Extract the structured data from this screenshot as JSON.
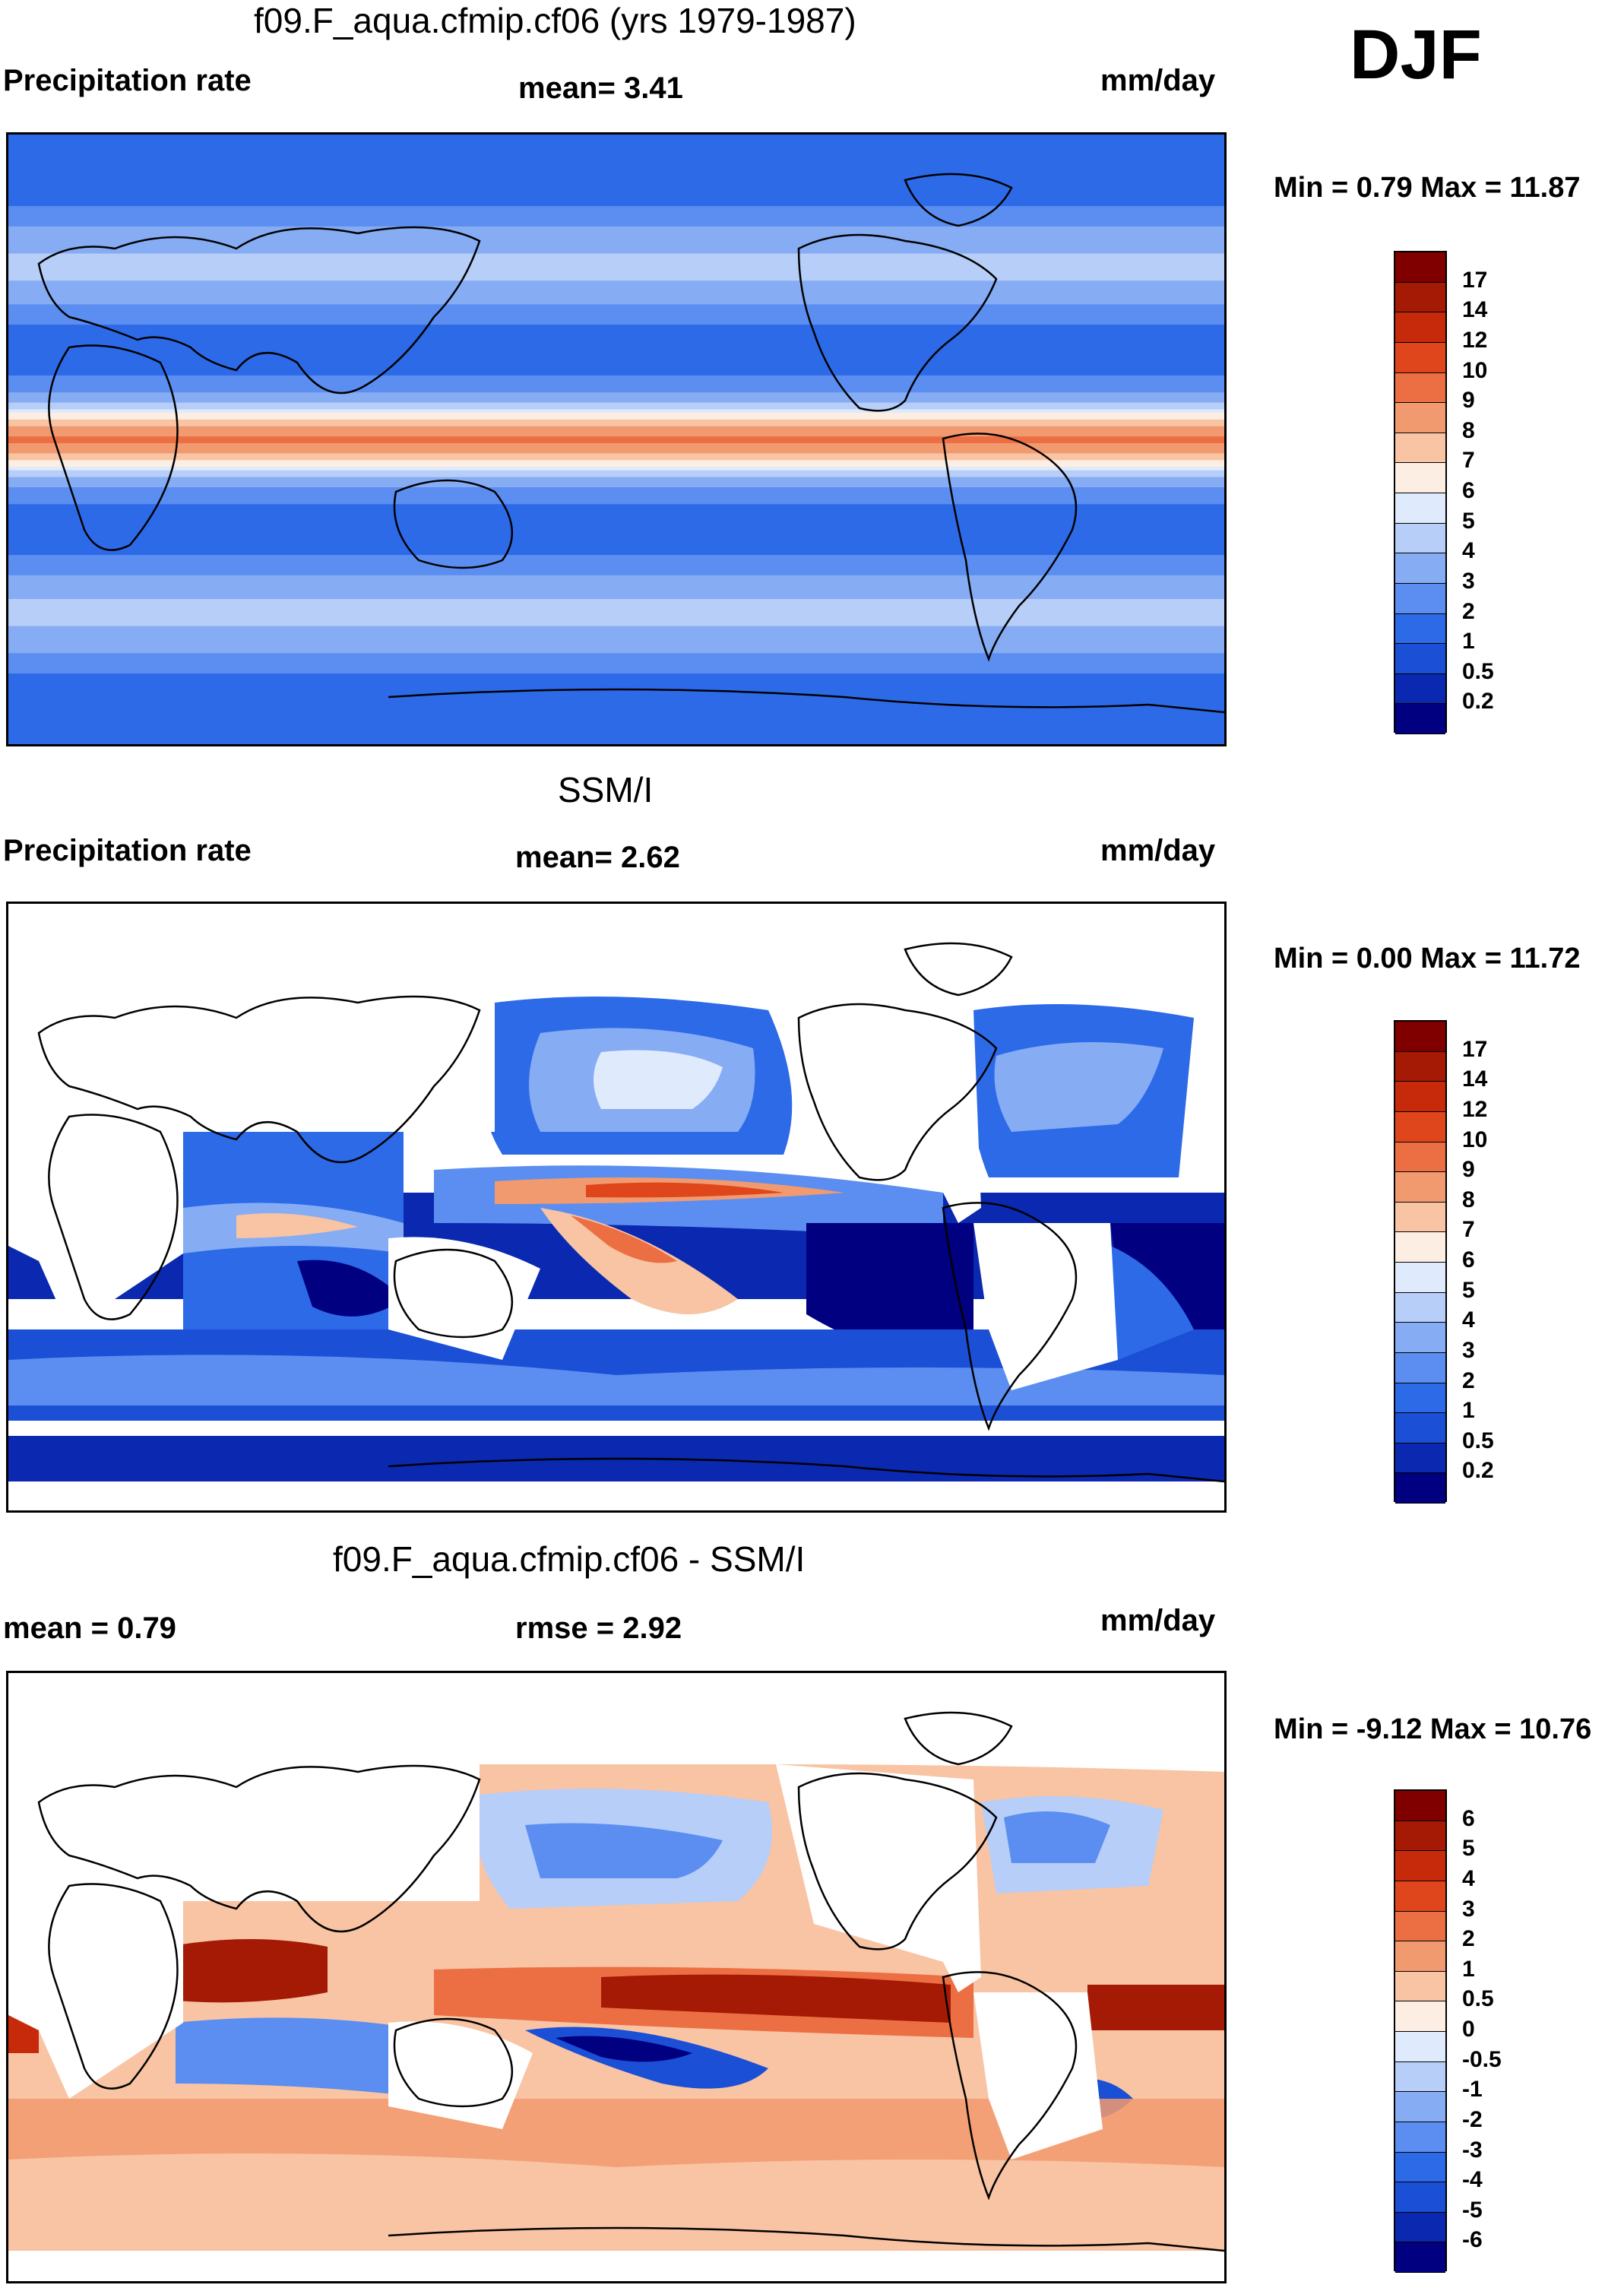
{
  "season": "DJF",
  "colors": {
    "precip": [
      "#000080",
      "#0a28b0",
      "#1b4fd6",
      "#2d6ae8",
      "#5b8ef0",
      "#86acf4",
      "#b6cef8",
      "#dfeafc",
      "#fdeee3",
      "#f8c4a4",
      "#f29a6f",
      "#ec6f43",
      "#e0461c",
      "#c62a0a",
      "#a41a05",
      "#800000"
    ],
    "diff": [
      "#000080",
      "#0a28b0",
      "#1b4fd6",
      "#2d6ae8",
      "#5b8ef0",
      "#86acf4",
      "#b6cef8",
      "#dfeafc",
      "#fdeee3",
      "#f8c4a4",
      "#f29a6f",
      "#ec6f43",
      "#e0461c",
      "#c62a0a",
      "#a41a05",
      "#800000"
    ],
    "land_outline": "#000000",
    "missing": "#ffffff"
  },
  "panels": [
    {
      "id": "model",
      "title": "f09.F_aqua.cfmip.cf06 (yrs 1979-1987)",
      "left_label": "Precipitation rate",
      "center_label": "mean=   3.41",
      "right_label": "mm/day",
      "min_max": "Min =   0.79 Max =  11.87"
    },
    {
      "id": "obs",
      "title": "SSM/I",
      "left_label": "Precipitation rate",
      "center_label": "mean=   2.62",
      "right_label": "mm/day",
      "min_max": "Min =   0.00 Max =  11.72"
    },
    {
      "id": "diff",
      "title": "f09.F_aqua.cfmip.cf06 - SSM/I",
      "left_label": "mean =   0.79",
      "center_label": "rmse =   2.92",
      "right_label": "mm/day",
      "min_max": "Min =  -9.12 Max =  10.76"
    }
  ],
  "chart_data": [
    {
      "type": "heatmap",
      "title": "f09.F_aqua.cfmip.cf06 (yrs 1979-1987)",
      "variable": "Precipitation rate",
      "units": "mm/day",
      "mean": 3.41,
      "min": 0.79,
      "max": 11.87,
      "levels": [
        "0.2",
        "0.5",
        "1",
        "2",
        "3",
        "4",
        "5",
        "6",
        "7",
        "8",
        "9",
        "10",
        "12",
        "14",
        "17"
      ],
      "zonal_profile": {
        "lat": [
          -90,
          -80,
          -70,
          -60,
          -50,
          -40,
          -30,
          -20,
          -15,
          -10,
          -5,
          0,
          5,
          10,
          15,
          20,
          30,
          40,
          50,
          60,
          70,
          80,
          90
        ],
        "value": [
          1.5,
          1.6,
          1.8,
          3.5,
          4.5,
          3.0,
          1.3,
          1.8,
          2.5,
          4.5,
          7.5,
          9.5,
          7.5,
          4.5,
          2.5,
          1.8,
          1.3,
          3.0,
          4.5,
          3.5,
          1.8,
          1.6,
          1.5
        ]
      }
    },
    {
      "type": "heatmap",
      "title": "SSM/I",
      "variable": "Precipitation rate",
      "units": "mm/day",
      "mean": 2.62,
      "min": 0.0,
      "max": 11.72,
      "levels": [
        "0.2",
        "0.5",
        "1",
        "2",
        "3",
        "4",
        "5",
        "6",
        "7",
        "8",
        "9",
        "10",
        "12",
        "14",
        "17"
      ]
    },
    {
      "type": "heatmap",
      "title": "f09.F_aqua.cfmip.cf06 - SSM/I",
      "units": "mm/day",
      "mean": 0.79,
      "rmse": 2.92,
      "min": -9.12,
      "max": 10.76,
      "levels": [
        "-6",
        "-5",
        "-4",
        "-3",
        "-2",
        "-1",
        "-0.5",
        "0",
        "0.5",
        "1",
        "2",
        "3",
        "4",
        "5",
        "6"
      ]
    }
  ]
}
